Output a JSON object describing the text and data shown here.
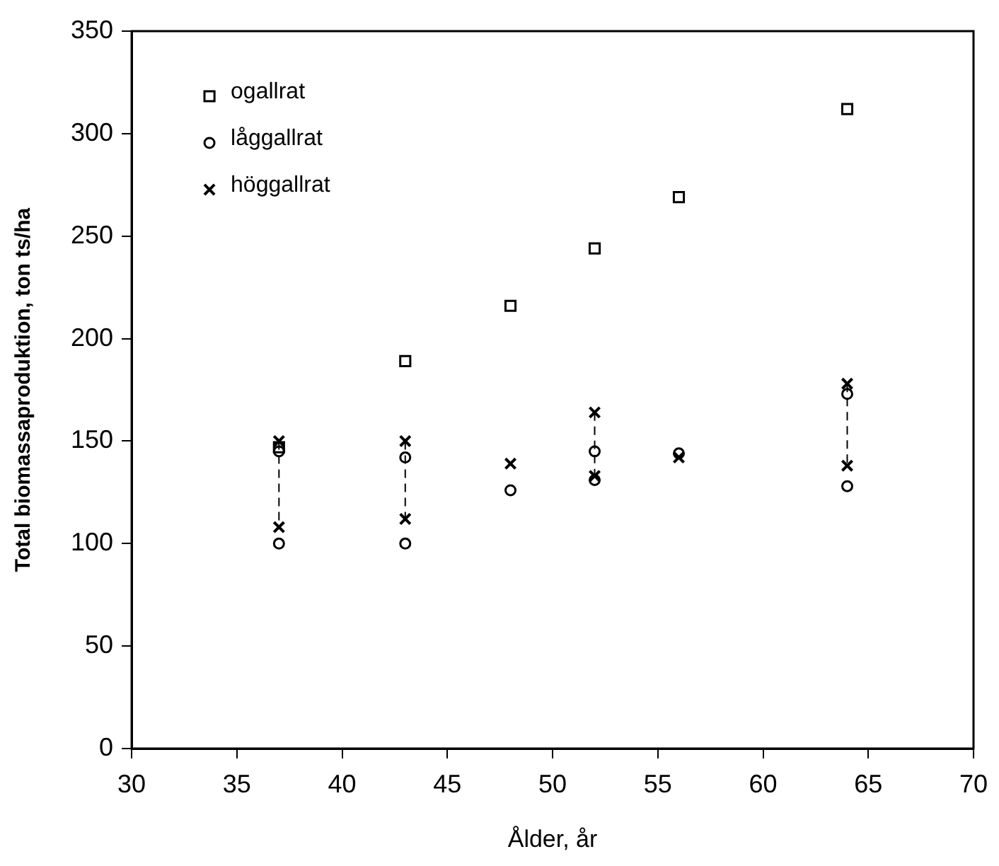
{
  "chart_data": {
    "type": "scatter",
    "xlabel": "Ålder, år",
    "ylabel": "Total biomassaproduktion, ton ts/ha",
    "xlim": [
      30,
      70
    ],
    "xticks": [
      30,
      35,
      40,
      45,
      50,
      55,
      60,
      65,
      70
    ],
    "ylim": [
      0,
      350
    ],
    "yticks": [
      0,
      50,
      100,
      150,
      200,
      250,
      300,
      350
    ],
    "grid": false,
    "legend": "top left",
    "series": [
      {
        "name": "ogallrat",
        "color": "#000000",
        "marker": "square",
        "x": [
          37,
          43,
          48,
          52,
          56,
          64
        ],
        "values": [
          147,
          189,
          216,
          244,
          269,
          312
        ]
      },
      {
        "name": "låggallrat",
        "color": "#000000",
        "marker": "circle",
        "x": [
          37,
          37,
          43,
          43,
          48,
          52,
          52,
          56,
          64,
          64
        ],
        "values": [
          145,
          100,
          142,
          100,
          126,
          145,
          131,
          144,
          173,
          128
        ]
      },
      {
        "name": "höggallrat",
        "color": "#000000",
        "marker": "cross",
        "x": [
          37,
          37,
          43,
          43,
          48,
          52,
          52,
          56,
          64,
          64
        ],
        "values": [
          150,
          108,
          150,
          112,
          139,
          164,
          133,
          142,
          178,
          138
        ]
      },
      {
        "type": "line",
        "color": "#000000",
        "line_style": "dashed",
        "marker": "none",
        "x": [
          37,
          37
        ],
        "values": [
          150,
          108
        ]
      },
      {
        "type": "line",
        "color": "#000000",
        "line_style": "dashed",
        "marker": "none",
        "x": [
          43,
          43
        ],
        "values": [
          150,
          112
        ]
      },
      {
        "type": "line",
        "color": "#000000",
        "line_style": "dashed",
        "marker": "none",
        "x": [
          52,
          52
        ],
        "values": [
          164,
          133
        ]
      },
      {
        "type": "line",
        "color": "#000000",
        "line_style": "dashed",
        "marker": "none",
        "x": [
          64,
          64
        ],
        "values": [
          178,
          138
        ]
      }
    ]
  }
}
